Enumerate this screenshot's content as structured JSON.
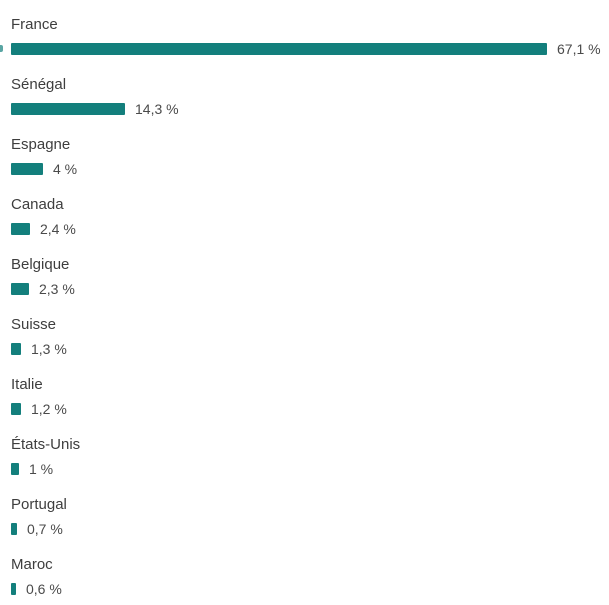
{
  "chart_data": {
    "type": "bar",
    "orientation": "horizontal",
    "title": "",
    "xlabel": "",
    "ylabel": "",
    "xlim": [
      0,
      67.1
    ],
    "grid": false,
    "bar_color": "#137f7c",
    "categories": [
      "France",
      "Sénégal",
      "Espagne",
      "Canada",
      "Belgique",
      "Suisse",
      "Italie",
      "États-Unis",
      "Portugal",
      "Maroc"
    ],
    "values": [
      67.1,
      14.3,
      4,
      2.4,
      2.3,
      1.3,
      1.2,
      1,
      0.7,
      0.6
    ],
    "value_labels": [
      "67,1 %",
      "14,3 %",
      "4 %",
      "2,4 %",
      "2,3 %",
      "1,3 %",
      "1,2 %",
      "1 %",
      "0,7 %",
      "0,6 %"
    ]
  }
}
